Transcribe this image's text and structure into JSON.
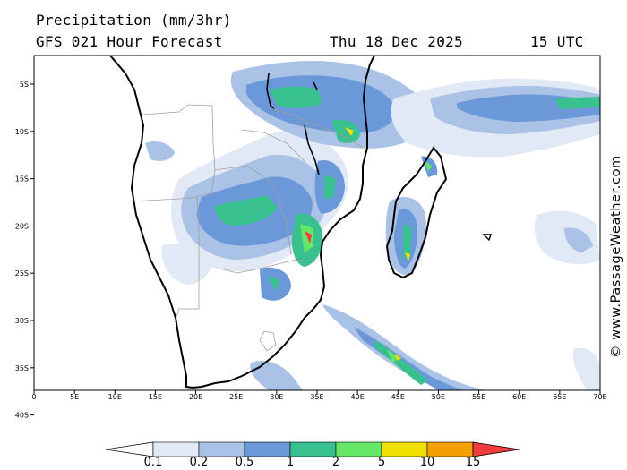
{
  "header": {
    "title": "Precipitation (mm/3hr)",
    "subtitle": "GFS 021 Hour Forecast",
    "date": "Thu 18 Dec 2025",
    "time": "15 UTC"
  },
  "credit": "© www.PassageWeather.com",
  "map": {
    "lat_ticks": [
      "5S",
      "10S",
      "15S",
      "20S",
      "25S",
      "30S",
      "35S",
      "40S"
    ],
    "lon_ticks": [
      "0",
      "5E",
      "10E",
      "15E",
      "20E",
      "25E",
      "30E",
      "35E",
      "40E",
      "45E",
      "50E",
      "55E",
      "60E",
      "65E",
      "70E"
    ],
    "lon_range": [
      0,
      70
    ],
    "lat_range": [
      -1,
      -40
    ]
  },
  "legend": {
    "levels": [
      "0.1",
      "0.2",
      "0.5",
      "1",
      "2",
      "5",
      "10",
      "15"
    ],
    "colors": [
      "#ffffff",
      "#e1e9f6",
      "#a9c2e6",
      "#6b98d8",
      "#38c08e",
      "#66e866",
      "#f2e100",
      "#f4a000",
      "#f03c3c"
    ]
  }
}
